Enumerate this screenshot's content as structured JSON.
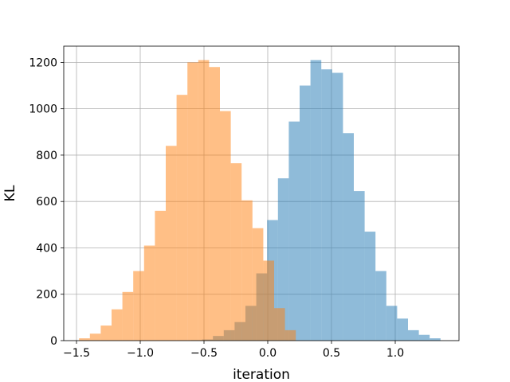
{
  "chart_data": {
    "type": "bar",
    "subtype": "histogram",
    "title": "",
    "xlabel": "iteration",
    "ylabel": "KL",
    "xlim": [
      -1.6,
      1.5
    ],
    "ylim": [
      0,
      1270
    ],
    "grid": true,
    "xticks": [
      -1.5,
      -1.0,
      -0.5,
      0.0,
      0.5,
      1.0
    ],
    "xtick_labels": [
      "−1.5",
      "−1.0",
      "−0.5",
      "0.0",
      "0.5",
      "1.0"
    ],
    "yticks": [
      0,
      200,
      400,
      600,
      800,
      1000,
      1200
    ],
    "ytick_labels": [
      "0",
      "200",
      "400",
      "600",
      "800",
      "1000",
      "1200"
    ],
    "series": [
      {
        "color": "#1f77b4",
        "alpha": 0.5,
        "bin_edges": [
          -0.6,
          -0.515,
          -0.43,
          -0.345,
          -0.26,
          -0.175,
          -0.09,
          -0.005,
          0.08,
          0.165,
          0.25,
          0.335,
          0.42,
          0.505,
          0.59,
          0.675,
          0.76,
          0.845,
          0.93,
          1.015,
          1.1,
          1.185,
          1.27,
          1.355
        ],
        "values": [
          2,
          5,
          20,
          45,
          80,
          150,
          290,
          520,
          700,
          945,
          1100,
          1210,
          1170,
          1155,
          895,
          645,
          470,
          300,
          150,
          95,
          45,
          25,
          10
        ]
      },
      {
        "color": "#ff7f0e",
        "alpha": 0.5,
        "bin_edges": [
          -1.48,
          -1.395,
          -1.31,
          -1.225,
          -1.14,
          -1.055,
          -0.97,
          -0.885,
          -0.8,
          -0.715,
          -0.63,
          -0.545,
          -0.46,
          -0.375,
          -0.29,
          -0.205,
          -0.12,
          -0.035,
          0.05,
          0.135,
          0.22
        ],
        "values": [
          10,
          30,
          65,
          135,
          210,
          300,
          410,
          560,
          840,
          1060,
          1200,
          1210,
          1180,
          990,
          765,
          605,
          485,
          345,
          140,
          45
        ]
      }
    ]
  }
}
